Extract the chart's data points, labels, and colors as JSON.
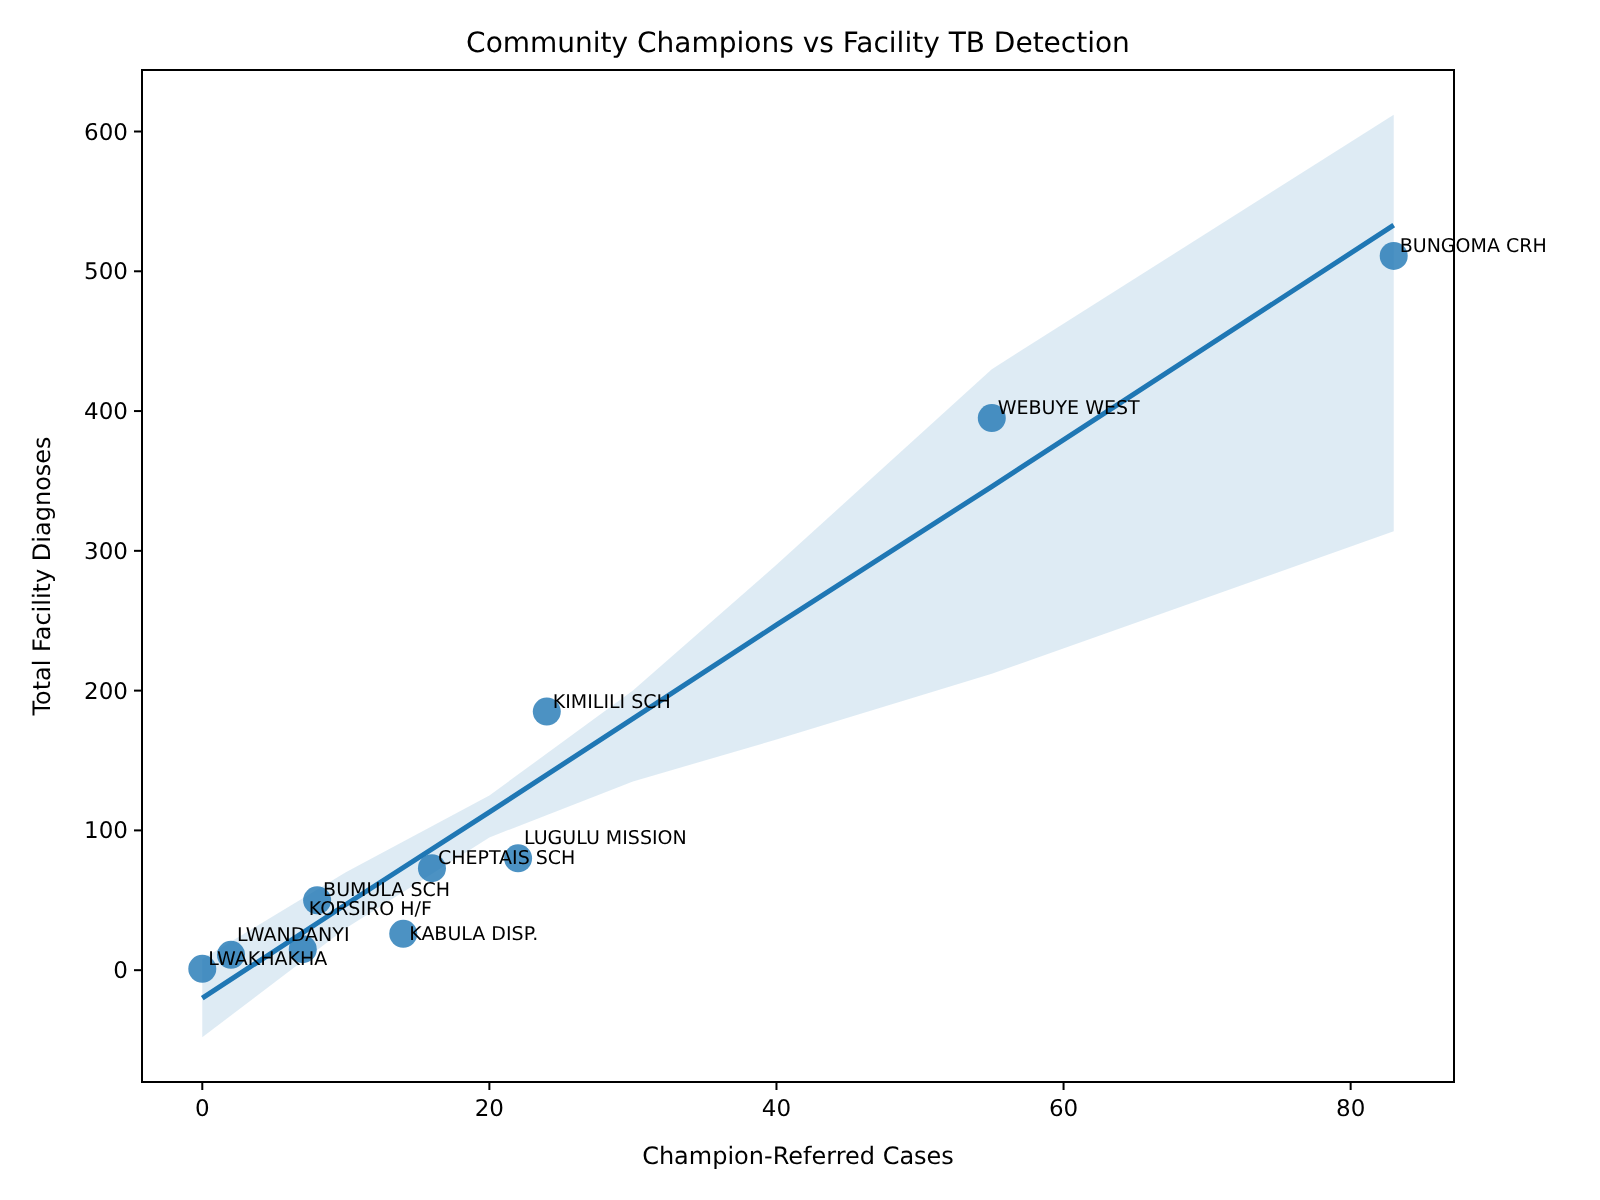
{
  "chart_data": {
    "type": "scatter",
    "title": "Community Champions vs Facility TB Detection",
    "xlabel": "Champion-Referred Cases",
    "ylabel": "Total Facility Diagnoses",
    "xlim": [
      -4.2,
      87.2
    ],
    "xticks": [
      0,
      20,
      40,
      60,
      80
    ],
    "ylim": [
      -80,
      644
    ],
    "yticks": [
      0,
      100,
      200,
      300,
      400,
      500,
      600
    ],
    "grid": false,
    "marker": "circle",
    "series": [
      {
        "color": "#1f77b4",
        "x": [
          0,
          2,
          7,
          14,
          8,
          16,
          22,
          24,
          55,
          83
        ],
        "values": [
          1,
          11,
          15,
          26,
          50,
          73,
          80,
          185,
          395,
          511
        ]
      },
      {
        "type": "line",
        "color": "#1f77b4",
        "line_style": "solid",
        "marker": "none",
        "x": [
          0,
          10,
          20,
          30,
          40,
          55,
          83
        ],
        "values": [
          -20,
          47,
          113,
          180,
          247,
          346,
          533
        ],
        "lower": [
          -48,
          30,
          95,
          135,
          165,
          212,
          314
        ],
        "upper": [
          8,
          70,
          125,
          200,
          290,
          430,
          612
        ]
      }
    ],
    "annotations": [
      {
        "text": "LWAKHAKHA",
        "x": 0,
        "y": 1
      },
      {
        "text": "LWANDANYI",
        "x": 2,
        "y": 11
      },
      {
        "text": "KORSIRO H/F",
        "x": 7,
        "y": 15
      },
      {
        "text": "KABULA DISP.",
        "x": 14,
        "y": 26
      },
      {
        "text": "BUMULA SCH",
        "x": 8,
        "y": 50
      },
      {
        "text": "CHEPTAIS SCH",
        "x": 16,
        "y": 73
      },
      {
        "text": "LUGULU MISSION",
        "x": 22,
        "y": 80
      },
      {
        "text": "KIMILILI SCH",
        "x": 24,
        "y": 185
      },
      {
        "text": "WEBUYE WEST",
        "x": 55,
        "y": 395
      },
      {
        "text": "BUNGOMA CRH",
        "x": 83,
        "y": 511
      }
    ]
  }
}
